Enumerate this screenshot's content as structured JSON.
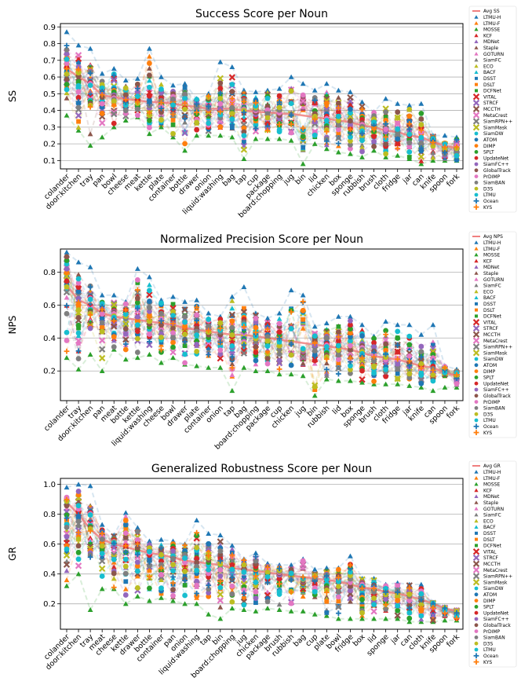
{
  "trackers": [
    "LTMU-H",
    "LTMU-F",
    "MOSSE",
    "KCF",
    "MDNet",
    "Staple",
    "GOTURN",
    "SiamFC",
    "ECO",
    "BACF",
    "DSST",
    "DSLT",
    "DCFNet",
    "VITAL",
    "STRCF",
    "MCCTH",
    "MetaCrest",
    "SiamRPN++",
    "SiamMask",
    "SiamDW",
    "ATOM",
    "DIMP",
    "SPLT",
    "UpdateNet",
    "SiamFC++",
    "GlobalTrack",
    "PrDIMP",
    "SiamBAN",
    "D3S",
    "LTMU",
    "Ocean",
    "KYS"
  ],
  "colors": [
    "#1f77b4",
    "#ff7f0e",
    "#2ca02c",
    "#d62728",
    "#9467bd",
    "#8c564b",
    "#e377c2",
    "#7f7f7f",
    "#bcbd22",
    "#17becf",
    "#1f77b4",
    "#ff7f0e",
    "#2ca02c",
    "#d62728",
    "#9467bd",
    "#8c564b",
    "#e377c2",
    "#7f7f7f",
    "#bcbd22",
    "#17becf",
    "#1f77b4",
    "#ff7f0e",
    "#2ca02c",
    "#d62728",
    "#9467bd",
    "#8c564b",
    "#e377c2",
    "#7f7f7f",
    "#bcbd22",
    "#17becf",
    "#1f77b4",
    "#ff7f0e"
  ],
  "markers": [
    "triangle",
    "triangle",
    "triangle",
    "triangle",
    "triangle",
    "triangle",
    "triangle",
    "triangle",
    "triangle",
    "triangle",
    "square",
    "square",
    "square",
    "x",
    "x",
    "x",
    "x",
    "x",
    "x",
    "circle",
    "circle",
    "circle",
    "circle",
    "circle",
    "circle",
    "circle",
    "circle",
    "circle",
    "circle",
    "circle",
    "plus",
    "plus"
  ],
  "avg_color": "#f08080",
  "chart_data": [
    {
      "type": "scatter",
      "title": "Success Score per Noun",
      "ylabel": "SS",
      "xlabel": "",
      "ylim": [
        0.05,
        0.92
      ],
      "yticks": [
        0.1,
        0.2,
        0.3,
        0.4,
        0.5,
        0.6,
        0.7,
        0.8,
        0.9
      ],
      "grid": true,
      "legend": "right",
      "avg_label": "Avg SS",
      "categories": [
        "colander",
        "door:kitchen",
        "tray",
        "pan",
        "bowl",
        "cheese",
        "meat",
        "kettle",
        "plate",
        "container",
        "bottle",
        "drawer",
        "onion",
        "liquid:washing",
        "bag",
        "tap",
        "cup",
        "package",
        "board:chopping",
        "jug",
        "bin",
        "lid",
        "chicken",
        "box",
        "sponge",
        "rubbish",
        "brush",
        "cloth",
        "fridge",
        "jar",
        "can",
        "knife",
        "spoon",
        "fork"
      ],
      "avg": [
        0.65,
        0.6,
        0.56,
        0.49,
        0.48,
        0.47,
        0.46,
        0.45,
        0.45,
        0.44,
        0.43,
        0.42,
        0.41,
        0.41,
        0.41,
        0.4,
        0.39,
        0.39,
        0.38,
        0.38,
        0.37,
        0.36,
        0.35,
        0.34,
        0.33,
        0.31,
        0.3,
        0.28,
        0.27,
        0.25,
        0.24,
        0.21,
        0.19,
        0.17
      ],
      "min": [
        0.37,
        0.28,
        0.19,
        0.24,
        0.3,
        0.34,
        0.36,
        0.26,
        0.3,
        0.24,
        0.16,
        0.25,
        0.25,
        0.25,
        0.24,
        0.11,
        0.23,
        0.23,
        0.23,
        0.22,
        0.08,
        0.2,
        0.17,
        0.15,
        0.14,
        0.12,
        0.16,
        0.12,
        0.13,
        0.11,
        0.08,
        0.1,
        0.1,
        0.1
      ],
      "max": [
        0.87,
        0.79,
        0.77,
        0.62,
        0.65,
        0.58,
        0.59,
        0.77,
        0.6,
        0.55,
        0.56,
        0.47,
        0.5,
        0.69,
        0.66,
        0.52,
        0.51,
        0.52,
        0.53,
        0.6,
        0.56,
        0.52,
        0.56,
        0.52,
        0.51,
        0.45,
        0.39,
        0.47,
        0.44,
        0.43,
        0.44,
        0.25,
        0.25,
        0.24
      ]
    },
    {
      "type": "scatter",
      "title": "Normalized Precision Score per Noun",
      "ylabel": "NPS",
      "xlabel": "",
      "ylim": [
        0.02,
        0.94
      ],
      "yticks": [
        0.2,
        0.4,
        0.6,
        0.8
      ],
      "grid": true,
      "legend": "right",
      "avg_label": "Avg NPS",
      "categories": [
        "colander",
        "tray",
        "door:kitchen",
        "pan",
        "meat",
        "bottle",
        "kettle",
        "liquid:washing",
        "cheese",
        "bowl",
        "drawer",
        "plate",
        "container",
        "onion",
        "tap",
        "bag",
        "board:chopping",
        "package",
        "cup",
        "chicken",
        "jug",
        "bin",
        "rubbish",
        "lid",
        "box",
        "sponge",
        "brush",
        "cloth",
        "fridge",
        "jar",
        "knife",
        "can",
        "spoon",
        "fork"
      ],
      "avg": [
        0.72,
        0.63,
        0.6,
        0.55,
        0.53,
        0.52,
        0.51,
        0.5,
        0.49,
        0.48,
        0.46,
        0.45,
        0.44,
        0.43,
        0.42,
        0.42,
        0.41,
        0.4,
        0.39,
        0.38,
        0.37,
        0.36,
        0.35,
        0.34,
        0.33,
        0.31,
        0.29,
        0.28,
        0.27,
        0.25,
        0.23,
        0.22,
        0.19,
        0.17
      ],
      "min": [
        0.28,
        0.21,
        0.3,
        0.2,
        0.33,
        0.27,
        0.28,
        0.3,
        0.25,
        0.28,
        0.24,
        0.23,
        0.22,
        0.22,
        0.08,
        0.22,
        0.2,
        0.2,
        0.18,
        0.18,
        0.17,
        0.05,
        0.15,
        0.14,
        0.14,
        0.13,
        0.12,
        0.12,
        0.12,
        0.11,
        0.1,
        0.08,
        0.1,
        0.1
      ],
      "max": [
        0.92,
        0.86,
        0.83,
        0.66,
        0.66,
        0.62,
        0.82,
        0.77,
        0.63,
        0.65,
        0.62,
        0.63,
        0.55,
        0.53,
        0.65,
        0.71,
        0.55,
        0.52,
        0.55,
        0.69,
        0.66,
        0.47,
        0.49,
        0.53,
        0.53,
        0.48,
        0.41,
        0.5,
        0.48,
        0.48,
        0.42,
        0.48,
        0.23,
        0.21
      ]
    },
    {
      "type": "scatter",
      "title": "Generalized Robustness Score per Noun",
      "ylabel": "GR",
      "xlabel": "",
      "ylim": [
        0.03,
        1.04
      ],
      "yticks": [
        0.2,
        0.4,
        0.6,
        0.8,
        1.0
      ],
      "grid": true,
      "legend": "right",
      "avg_label": "Avg GR",
      "categories": [
        "colander",
        "door:kitchen",
        "tray",
        "meat",
        "cheese",
        "kettle",
        "drawer",
        "bottle",
        "container",
        "pan",
        "onion",
        "liquid:washing",
        "tap",
        "bin",
        "board:chopping",
        "jug",
        "chicken",
        "package",
        "brush",
        "rubbish",
        "bag",
        "cup",
        "plate",
        "bowl",
        "fridge",
        "box",
        "lid",
        "sponge",
        "jar",
        "can",
        "cloth",
        "knife",
        "spoon",
        "fork"
      ],
      "avg": [
        0.88,
        0.8,
        0.7,
        0.63,
        0.6,
        0.58,
        0.56,
        0.54,
        0.53,
        0.51,
        0.49,
        0.48,
        0.47,
        0.46,
        0.44,
        0.43,
        0.42,
        0.41,
        0.4,
        0.39,
        0.38,
        0.37,
        0.36,
        0.35,
        0.33,
        0.31,
        0.3,
        0.28,
        0.27,
        0.25,
        0.23,
        0.2,
        0.17,
        0.15
      ],
      "min": [
        0.32,
        0.4,
        0.16,
        0.3,
        0.3,
        0.2,
        0.25,
        0.22,
        0.24,
        0.22,
        0.2,
        0.2,
        0.13,
        0.1,
        0.17,
        0.16,
        0.15,
        0.17,
        0.16,
        0.15,
        0.15,
        0.13,
        0.12,
        0.1,
        0.1,
        0.1,
        0.1,
        0.1,
        0.1,
        0.08,
        0.08,
        0.08,
        0.09,
        0.09
      ],
      "max": [
        0.98,
        1.0,
        0.99,
        0.73,
        0.66,
        0.81,
        0.71,
        0.62,
        0.63,
        0.62,
        0.6,
        0.76,
        0.67,
        0.66,
        0.59,
        0.5,
        0.54,
        0.47,
        0.46,
        0.46,
        0.5,
        0.43,
        0.44,
        0.44,
        0.52,
        0.37,
        0.37,
        0.33,
        0.34,
        0.33,
        0.33,
        0.21,
        0.18,
        0.16
      ]
    }
  ]
}
